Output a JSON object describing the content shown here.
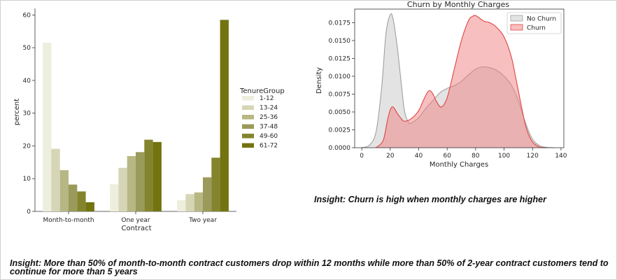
{
  "chart_data": [
    {
      "type": "bar",
      "title": "",
      "xlabel": "Contract",
      "ylabel": "percent",
      "ylim": [
        0,
        62
      ],
      "yticks": [
        0,
        10,
        20,
        30,
        40,
        50,
        60
      ],
      "categories": [
        "Month-to-month",
        "One year",
        "Two year"
      ],
      "legend_title": "TenureGroup",
      "legend_position": "right, outside",
      "series": [
        {
          "name": "1-12",
          "color": "#eeeedd",
          "values": [
            51.5,
            8.3,
            3.4
          ]
        },
        {
          "name": "13-24",
          "color": "#d6d6b6",
          "values": [
            19.1,
            13.3,
            5.3
          ]
        },
        {
          "name": "25-36",
          "color": "#b7b784",
          "values": [
            12.6,
            16.9,
            5.8
          ]
        },
        {
          "name": "37-48",
          "color": "#9a9a5a",
          "values": [
            8.2,
            18.1,
            10.4
          ]
        },
        {
          "name": "49-60",
          "color": "#84842e",
          "values": [
            6.1,
            21.9,
            16.4
          ]
        },
        {
          "name": "61-72",
          "color": "#737310",
          "values": [
            2.8,
            21.2,
            58.5
          ]
        }
      ]
    },
    {
      "type": "area",
      "title": "Churn by Monthly Charges",
      "xlabel": "Monthly Charges",
      "ylabel": "Density",
      "xlim": [
        -5,
        142
      ],
      "ylim": [
        0,
        0.0194
      ],
      "xticks": [
        0,
        20,
        40,
        60,
        80,
        100,
        120,
        140
      ],
      "yticks": [
        "0.0000",
        "0.0025",
        "0.0050",
        "0.0075",
        "0.0100",
        "0.0125",
        "0.0150",
        "0.0175"
      ],
      "legend_position": "top-right",
      "series": [
        {
          "name": "No Churn",
          "color": "#a0a0a0",
          "fill": "#c8c8c8",
          "x": [
            0,
            5,
            10,
            14,
            17,
            20,
            22,
            25,
            28,
            30,
            33,
            36,
            40,
            45,
            50,
            55,
            60,
            65,
            70,
            75,
            80,
            85,
            90,
            95,
            100,
            105,
            110,
            115,
            120,
            125,
            130,
            135
          ],
          "y": [
            2e-05,
            0.0003,
            0.0022,
            0.0085,
            0.016,
            0.0186,
            0.018,
            0.014,
            0.0085,
            0.0052,
            0.0035,
            0.0036,
            0.0042,
            0.0055,
            0.0066,
            0.0077,
            0.0083,
            0.0087,
            0.0093,
            0.0102,
            0.011,
            0.0113,
            0.0112,
            0.0108,
            0.01,
            0.0088,
            0.0066,
            0.0035,
            0.0012,
            0.0003,
            5e-05,
            0.0
          ]
        },
        {
          "name": "Churn",
          "color": "#e04444",
          "fill": "#f08080",
          "x": [
            10,
            15,
            18,
            20,
            22,
            25,
            28,
            30,
            35,
            40,
            43,
            46,
            48,
            50,
            53,
            56,
            60,
            65,
            70,
            75,
            78,
            80,
            83,
            86,
            90,
            95,
            100,
            105,
            108,
            110,
            113,
            116,
            120,
            125,
            130
          ],
          "y": [
            0.0,
            0.001,
            0.0038,
            0.0053,
            0.0057,
            0.0048,
            0.004,
            0.0037,
            0.0041,
            0.0052,
            0.0065,
            0.0077,
            0.008,
            0.0075,
            0.0063,
            0.0057,
            0.007,
            0.011,
            0.015,
            0.0178,
            0.0184,
            0.0185,
            0.0181,
            0.0177,
            0.0175,
            0.0168,
            0.0155,
            0.0128,
            0.01,
            0.008,
            0.005,
            0.0025,
            0.0008,
            0.0001,
            0.0
          ]
        }
      ]
    }
  ],
  "insights": {
    "right": "Insight: Churn is high when monthly charges are higher",
    "bottom": "Insight: More than 50% of month-to-month contract customers drop within 12 months while more than 50% of 2-year contract customers tend to continue for more than 5 years"
  }
}
